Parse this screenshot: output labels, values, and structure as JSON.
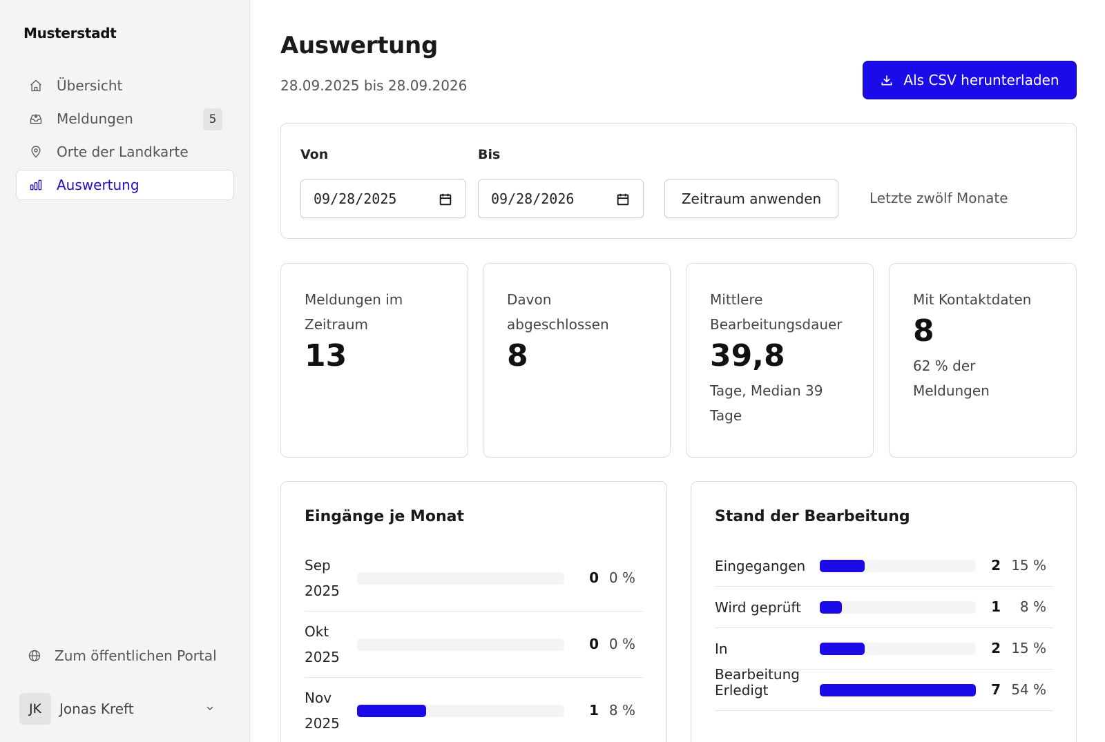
{
  "sidebar": {
    "brand": "Musterstadt",
    "nav": [
      {
        "label": "Übersicht",
        "icon": "home-icon"
      },
      {
        "label": "Meldungen",
        "icon": "inbox-icon",
        "badge": "5"
      },
      {
        "label": "Orte der Landkarte",
        "icon": "map-pin-icon"
      },
      {
        "label": "Auswertung",
        "icon": "bar-chart-icon",
        "active": true
      }
    ],
    "portal_link": "Zum öffentlichen Portal",
    "user": {
      "initials": "JK",
      "name": "Jonas Kreft"
    }
  },
  "header": {
    "title": "Auswertung",
    "date_range": "28.09.2025 bis 28.09.2026",
    "csv_button": "Als CSV herunterladen"
  },
  "filter": {
    "from_label": "Von",
    "from_value": "09/28/2025",
    "to_label": "Bis",
    "to_value": "09/28/2026",
    "apply_button": "Zeitraum anwenden",
    "preset_link": "Letzte zwölf Monate"
  },
  "stats": [
    {
      "label": "Meldungen im Zeitraum",
      "value": "13",
      "sub": ""
    },
    {
      "label": "Davon abgeschlossen",
      "value": "8",
      "sub": ""
    },
    {
      "label": "Mittlere Bearbeitungsdauer",
      "value": "39,8",
      "sub": "Tage, Median 39 Tage"
    },
    {
      "label": "Mit Kontaktdaten",
      "value": "8",
      "sub": "62 % der Meldungen"
    }
  ],
  "monthly": {
    "title": "Eingänge je Monat",
    "rows": [
      {
        "label": "Sep 2025",
        "count": "0",
        "percent": "0 %",
        "fraction": 0
      },
      {
        "label": "Okt 2025",
        "count": "0",
        "percent": "0 %",
        "fraction": 0
      },
      {
        "label": "Nov 2025",
        "count": "1",
        "percent": "8 %",
        "fraction": 0.333
      }
    ]
  },
  "status": {
    "title": "Stand der Bearbeitung",
    "rows": [
      {
        "label": "Eingegangen",
        "count": "2",
        "percent": "15 %",
        "fraction": 0.286
      },
      {
        "label": "Wird geprüft",
        "count": "1",
        "percent": "8 %",
        "fraction": 0.143
      },
      {
        "label": "In Bearbeitung",
        "count": "2",
        "percent": "15 %",
        "fraction": 0.286
      },
      {
        "label": "Erledigt",
        "count": "7",
        "percent": "54 %",
        "fraction": 1.0
      }
    ]
  },
  "colors": {
    "accent": "#1a0be8",
    "sidebar_bg": "#f4f4f5"
  }
}
